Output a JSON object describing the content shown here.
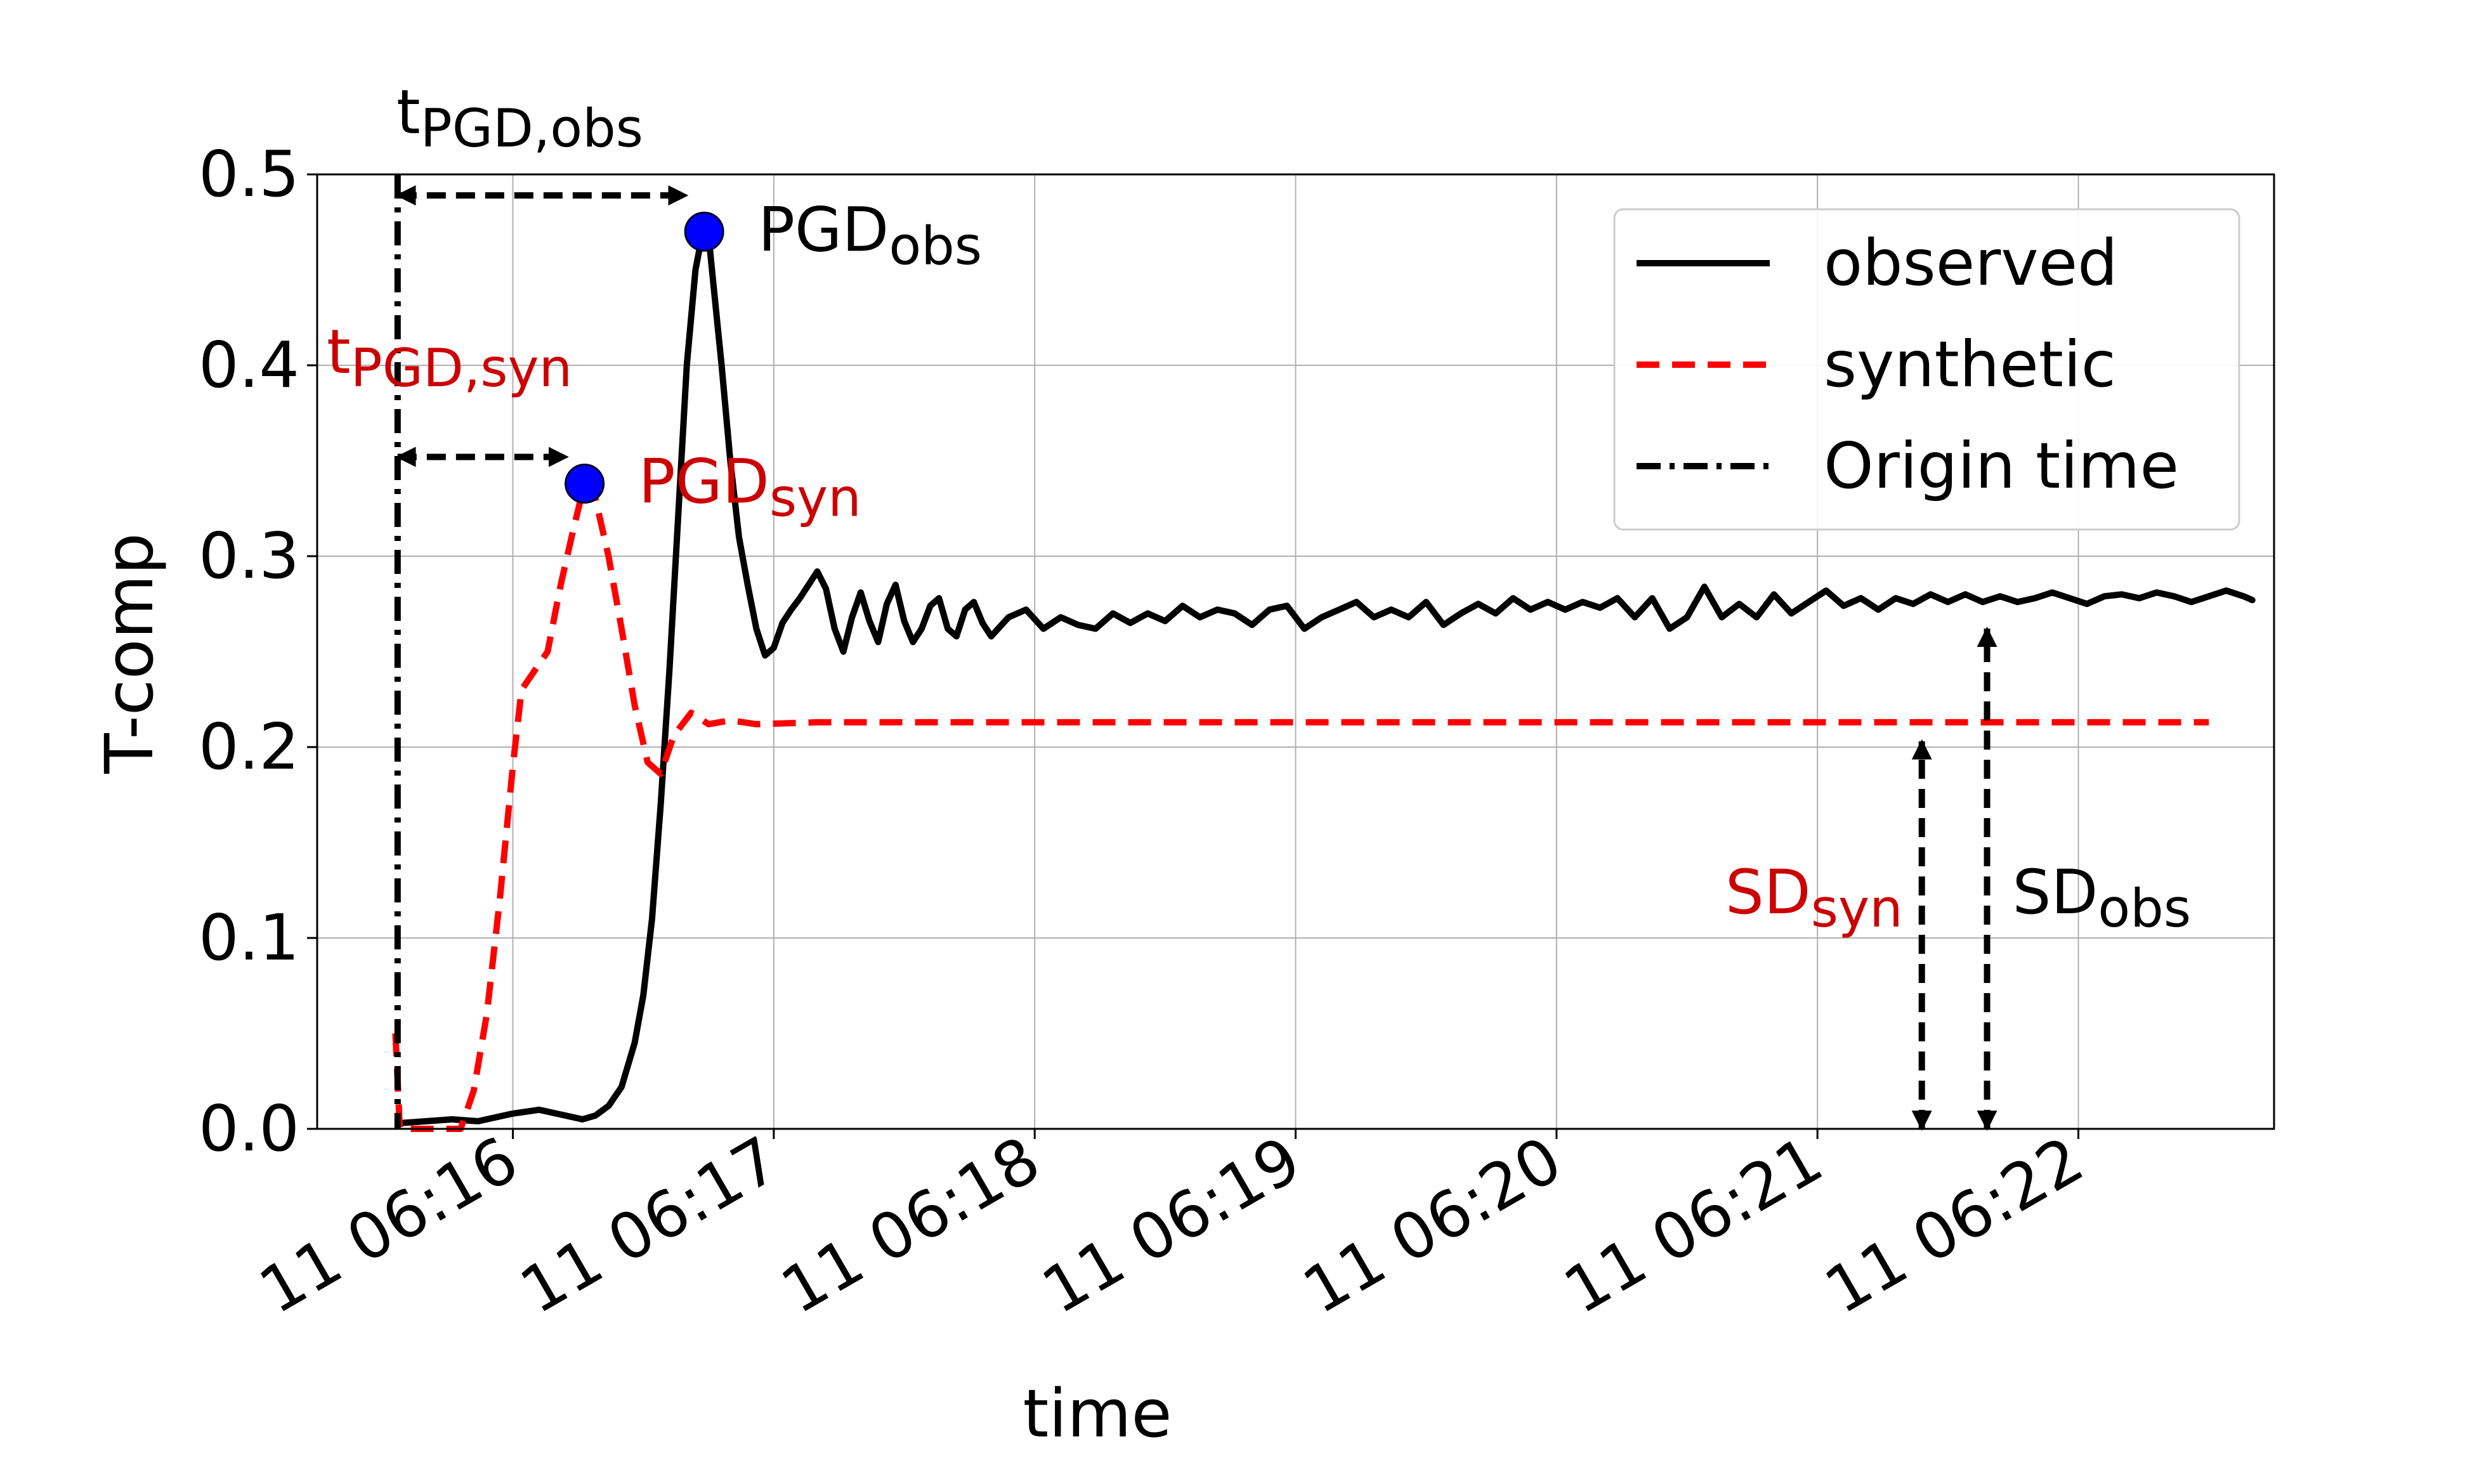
{
  "chart_data": {
    "type": "line",
    "xlabel": "time",
    "ylabel": "T-comp",
    "x_axis": {
      "unit": "seconds after 06:16",
      "range_seconds": [
        -45,
        405
      ],
      "ticks": [
        {
          "label": "11 06:16",
          "seconds": 0
        },
        {
          "label": "11 06:17",
          "seconds": 60
        },
        {
          "label": "11 06:18",
          "seconds": 120
        },
        {
          "label": "11 06:19",
          "seconds": 180
        },
        {
          "label": "11 06:20",
          "seconds": 240
        },
        {
          "label": "11 06:21",
          "seconds": 300
        },
        {
          "label": "11 06:22",
          "seconds": 360
        }
      ]
    },
    "ylim": [
      0.0,
      0.5
    ],
    "y_ticks": [
      "0.0",
      "0.1",
      "0.2",
      "0.3",
      "0.4",
      "0.5"
    ],
    "grid": true,
    "legend_position": "top-right",
    "series": [
      {
        "name": "observed",
        "color": "#000000",
        "style": "solid",
        "points": [
          [
            -26,
            0.003
          ],
          [
            -20,
            0.004
          ],
          [
            -14,
            0.005
          ],
          [
            -8,
            0.004
          ],
          [
            -4,
            0.006
          ],
          [
            0,
            0.008
          ],
          [
            6,
            0.01
          ],
          [
            12,
            0.007
          ],
          [
            16,
            0.005
          ],
          [
            19,
            0.007
          ],
          [
            22,
            0.012
          ],
          [
            25,
            0.022
          ],
          [
            28,
            0.045
          ],
          [
            30,
            0.07
          ],
          [
            32,
            0.11
          ],
          [
            34,
            0.17
          ],
          [
            36,
            0.24
          ],
          [
            38,
            0.32
          ],
          [
            40,
            0.4
          ],
          [
            42,
            0.45
          ],
          [
            43,
            0.462
          ],
          [
            44,
            0.47
          ],
          [
            45,
            0.468
          ],
          [
            46,
            0.445
          ],
          [
            48,
            0.4
          ],
          [
            50,
            0.35
          ],
          [
            52,
            0.31
          ],
          [
            54,
            0.285
          ],
          [
            56,
            0.262
          ],
          [
            58,
            0.248
          ],
          [
            60,
            0.252
          ],
          [
            62,
            0.265
          ],
          [
            64,
            0.272
          ],
          [
            66,
            0.278
          ],
          [
            68,
            0.285
          ],
          [
            70,
            0.292
          ],
          [
            72,
            0.283
          ],
          [
            74,
            0.262
          ],
          [
            76,
            0.25
          ],
          [
            78,
            0.268
          ],
          [
            80,
            0.281
          ],
          [
            82,
            0.266
          ],
          [
            84,
            0.255
          ],
          [
            86,
            0.275
          ],
          [
            88,
            0.285
          ],
          [
            90,
            0.266
          ],
          [
            92,
            0.255
          ],
          [
            94,
            0.262
          ],
          [
            96,
            0.274
          ],
          [
            98,
            0.278
          ],
          [
            100,
            0.262
          ],
          [
            102,
            0.258
          ],
          [
            104,
            0.272
          ],
          [
            106,
            0.276
          ],
          [
            108,
            0.265
          ],
          [
            110,
            0.258
          ],
          [
            114,
            0.268
          ],
          [
            118,
            0.272
          ],
          [
            122,
            0.262
          ],
          [
            126,
            0.268
          ],
          [
            130,
            0.264
          ],
          [
            134,
            0.262
          ],
          [
            138,
            0.27
          ],
          [
            142,
            0.265
          ],
          [
            146,
            0.27
          ],
          [
            150,
            0.266
          ],
          [
            154,
            0.274
          ],
          [
            158,
            0.268
          ],
          [
            162,
            0.272
          ],
          [
            166,
            0.27
          ],
          [
            170,
            0.264
          ],
          [
            174,
            0.272
          ],
          [
            178,
            0.274
          ],
          [
            182,
            0.262
          ],
          [
            186,
            0.268
          ],
          [
            190,
            0.272
          ],
          [
            194,
            0.276
          ],
          [
            198,
            0.268
          ],
          [
            202,
            0.272
          ],
          [
            206,
            0.268
          ],
          [
            210,
            0.276
          ],
          [
            214,
            0.264
          ],
          [
            218,
            0.27
          ],
          [
            222,
            0.275
          ],
          [
            226,
            0.27
          ],
          [
            230,
            0.278
          ],
          [
            234,
            0.272
          ],
          [
            238,
            0.276
          ],
          [
            242,
            0.272
          ],
          [
            246,
            0.276
          ],
          [
            250,
            0.273
          ],
          [
            254,
            0.278
          ],
          [
            258,
            0.268
          ],
          [
            262,
            0.278
          ],
          [
            266,
            0.262
          ],
          [
            270,
            0.268
          ],
          [
            274,
            0.284
          ],
          [
            278,
            0.268
          ],
          [
            282,
            0.275
          ],
          [
            286,
            0.268
          ],
          [
            290,
            0.28
          ],
          [
            294,
            0.27
          ],
          [
            298,
            0.276
          ],
          [
            302,
            0.282
          ],
          [
            306,
            0.274
          ],
          [
            310,
            0.278
          ],
          [
            314,
            0.272
          ],
          [
            318,
            0.278
          ],
          [
            322,
            0.275
          ],
          [
            326,
            0.28
          ],
          [
            330,
            0.276
          ],
          [
            334,
            0.28
          ],
          [
            338,
            0.276
          ],
          [
            342,
            0.279
          ],
          [
            346,
            0.276
          ],
          [
            350,
            0.278
          ],
          [
            354,
            0.281
          ],
          [
            358,
            0.278
          ],
          [
            362,
            0.275
          ],
          [
            366,
            0.279
          ],
          [
            370,
            0.28
          ],
          [
            374,
            0.278
          ],
          [
            378,
            0.281
          ],
          [
            382,
            0.279
          ],
          [
            386,
            0.276
          ],
          [
            390,
            0.279
          ],
          [
            394,
            0.282
          ],
          [
            398,
            0.279
          ],
          [
            400,
            0.277
          ]
        ]
      },
      {
        "name": "synthetic",
        "color": "#ff0000",
        "style": "dashed",
        "points": [
          [
            -27,
            0.05
          ],
          [
            -26,
            0.0
          ],
          [
            -18,
            0.0
          ],
          [
            -12,
            0.0
          ],
          [
            -9,
            0.02
          ],
          [
            -6,
            0.06
          ],
          [
            -3,
            0.12
          ],
          [
            0,
            0.19
          ],
          [
            2,
            0.23
          ],
          [
            5,
            0.24
          ],
          [
            8,
            0.25
          ],
          [
            11,
            0.285
          ],
          [
            14,
            0.315
          ],
          [
            16.5,
            0.338
          ],
          [
            19,
            0.33
          ],
          [
            22,
            0.3
          ],
          [
            25,
            0.262
          ],
          [
            28,
            0.222
          ],
          [
            31,
            0.192
          ],
          [
            34,
            0.186
          ],
          [
            37,
            0.206
          ],
          [
            41,
            0.218
          ],
          [
            45,
            0.212
          ],
          [
            50,
            0.214
          ],
          [
            56,
            0.212
          ],
          [
            70,
            0.213
          ],
          [
            100,
            0.213
          ],
          [
            200,
            0.213
          ],
          [
            300,
            0.213
          ],
          [
            390,
            0.213
          ]
        ]
      },
      {
        "name": "Origin time",
        "color": "#000000",
        "style": "dashdot",
        "x_seconds": -26.5
      }
    ],
    "markers": [
      {
        "label_main": "PGD",
        "label_sub": "obs",
        "x_seconds": 44,
        "y": 0.47,
        "color": "#0000ff",
        "label_color": "#000000"
      },
      {
        "label_main": "PGD",
        "label_sub": "syn",
        "x_seconds": 16.5,
        "y": 0.338,
        "color": "#0000ff",
        "label_color": "#cc0000"
      }
    ],
    "annotations": [
      {
        "kind": "horizontal",
        "label_main": "t",
        "label_sub": "PGD,obs",
        "from_seconds": -26.5,
        "to_seconds": 44,
        "y": 0.489,
        "color": "#cc0000"
      },
      {
        "kind": "horizontal",
        "label_main": "t",
        "label_sub": "PGD,syn",
        "from_seconds": -26.5,
        "to_seconds": 16.5,
        "y": 0.352,
        "color": "#cc0000"
      },
      {
        "kind": "vertical",
        "label_main": "SD",
        "label_sub": "syn",
        "x_seconds": 324,
        "from_y": 0.0,
        "to_y": 0.213,
        "color": "#cc0000"
      },
      {
        "kind": "vertical",
        "label_main": "SD",
        "label_sub": "obs",
        "x_seconds": 339,
        "from_y": 0.0,
        "to_y": 0.272,
        "color": "#000000"
      }
    ]
  }
}
